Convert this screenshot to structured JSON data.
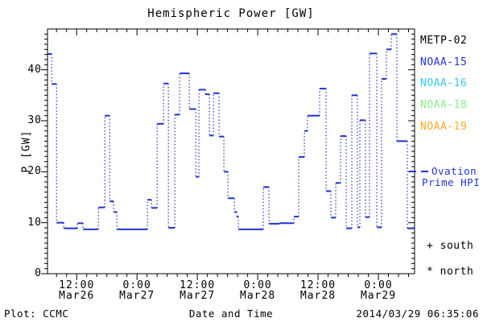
{
  "title": "Hemispheric Power [GW]",
  "footer": {
    "plot_credit": "Plot: CCMC",
    "timestamp": "2014/03/29 06:35:06"
  },
  "colors": {
    "background": "#ffffff",
    "frame": "#000000",
    "curve_blue": "#2233cc",
    "metp02": "#000000",
    "noaa15": "#2233dd",
    "noaa16": "#33ccee",
    "noaa18": "#88ee88",
    "noaa19": "#ffaa22",
    "ovation_text": "#2233dd"
  },
  "legend": {
    "satellites": [
      {
        "label": "METP-02",
        "color": "#000000"
      },
      {
        "label": "NOAA-15",
        "color": "#2233dd"
      },
      {
        "label": "NOAA-16",
        "color": "#33ccee"
      },
      {
        "label": "NOAA-18",
        "color": "#88ee88"
      },
      {
        "label": "NOAA-19",
        "color": "#ffaa22"
      }
    ],
    "line_sample_label_line1": "Ovation",
    "line_sample_label_line2": "Prime HPI",
    "south": {
      "symbol": "+",
      "label": "south"
    },
    "north": {
      "symbol": "*",
      "label": "north"
    }
  },
  "chart_data": {
    "type": "line",
    "step": true,
    "title": "Hemispheric Power [GW]",
    "xlabel": "Date and Time",
    "ylabel": "P [GW]",
    "ylim": [
      0,
      48
    ],
    "xlim_hours_from_mar26_0000": [
      6.2,
      79.2
    ],
    "grid": false,
    "legend_position": "right",
    "y_major_ticks": [
      {
        "value": 0,
        "label": "0"
      },
      {
        "value": 10,
        "label": "10"
      },
      {
        "value": 20,
        "label": "20"
      },
      {
        "value": 30,
        "label": "30"
      },
      {
        "value": 40,
        "label": "40"
      }
    ],
    "y_minor_step_GW": 1,
    "x_major_ticks": [
      {
        "hours": 12,
        "label_time": "12:00",
        "label_date": "Mar26"
      },
      {
        "hours": 24,
        "label_time": "0:00",
        "label_date": "Mar27"
      },
      {
        "hours": 36,
        "label_time": "12:00",
        "label_date": "Mar27"
      },
      {
        "hours": 48,
        "label_time": "0:00",
        "label_date": "Mar28"
      },
      {
        "hours": 60,
        "label_time": "12:00",
        "label_date": "Mar28"
      },
      {
        "hours": 72,
        "label_time": "0:00",
        "label_date": "Mar29"
      }
    ],
    "x_minor_step_hours": 2,
    "series": [
      {
        "name": "Ovation Prime HPI",
        "color": "#2233cc",
        "units": "GW",
        "points_t_hours_v_GW": [
          [
            6.24,
            43.1
          ],
          [
            7.04,
            37.2
          ],
          [
            8.0,
            10.0
          ],
          [
            9.44,
            8.9
          ],
          [
            12.16,
            9.9
          ],
          [
            13.28,
            8.7
          ],
          [
            16.32,
            13.0
          ],
          [
            17.6,
            31.0
          ],
          [
            18.56,
            14.2
          ],
          [
            19.36,
            12.1
          ],
          [
            20.0,
            8.7
          ],
          [
            26.08,
            14.5
          ],
          [
            26.88,
            12.9
          ],
          [
            28.0,
            29.4
          ],
          [
            29.28,
            37.3
          ],
          [
            30.24,
            9.0
          ],
          [
            31.52,
            31.2
          ],
          [
            32.48,
            39.3
          ],
          [
            34.4,
            32.3
          ],
          [
            35.68,
            19.0
          ],
          [
            36.32,
            36.1
          ],
          [
            37.6,
            35.2
          ],
          [
            38.4,
            27.1
          ],
          [
            39.2,
            35.4
          ],
          [
            40.32,
            26.9
          ],
          [
            41.28,
            20.0
          ],
          [
            42.08,
            14.8
          ],
          [
            43.36,
            12.1
          ],
          [
            43.84,
            11.2
          ],
          [
            44.16,
            8.7
          ],
          [
            49.12,
            17.0
          ],
          [
            50.24,
            9.8
          ],
          [
            52.32,
            9.9
          ],
          [
            55.2,
            11.2
          ],
          [
            56.16,
            22.9
          ],
          [
            57.28,
            28.0
          ],
          [
            57.92,
            31.0
          ],
          [
            60.32,
            36.3
          ],
          [
            61.6,
            16.2
          ],
          [
            62.56,
            11.0
          ],
          [
            63.52,
            17.8
          ],
          [
            64.48,
            27.0
          ],
          [
            65.6,
            8.9
          ],
          [
            66.72,
            35.0
          ],
          [
            67.84,
            9.1
          ],
          [
            68.32,
            30.1
          ],
          [
            69.44,
            11.1
          ],
          [
            70.24,
            43.2
          ],
          [
            71.68,
            9.1
          ],
          [
            72.64,
            38.2
          ],
          [
            73.6,
            44.0
          ],
          [
            74.56,
            47.0
          ],
          [
            75.68,
            26.0
          ],
          [
            77.76,
            8.9
          ]
        ],
        "end_t_hours": 79.2
      }
    ]
  }
}
